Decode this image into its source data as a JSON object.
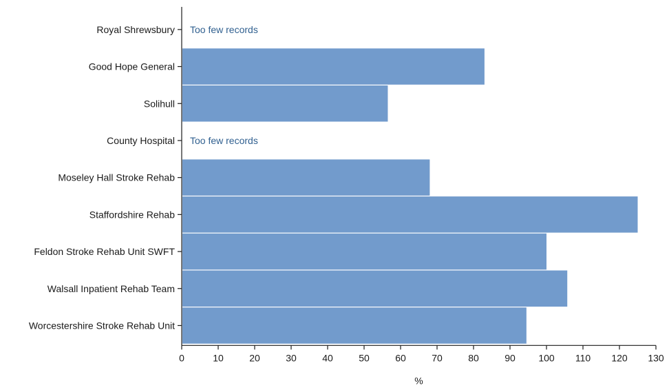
{
  "chart_data": {
    "type": "bar",
    "orientation": "horizontal",
    "categories": [
      "Royal Shrewsbury",
      "Good Hope General",
      "Solihull",
      "County Hospital",
      "Moseley Hall Stroke Rehab",
      "Staffordshire Rehab",
      "Feldon Stroke Rehab Unit SWFT",
      "Walsall Inpatient Rehab Team",
      "Worcestershire Stroke Rehab Unit"
    ],
    "values": [
      null,
      83,
      56.5,
      null,
      68,
      125,
      100,
      105.7,
      94.5
    ],
    "notes": [
      "Too few records",
      null,
      null,
      "Too few records",
      null,
      null,
      null,
      null,
      null
    ],
    "xlabel": "%",
    "ylabel": "",
    "xlim": [
      0,
      130
    ],
    "xticks": [
      0,
      10,
      20,
      30,
      40,
      50,
      60,
      70,
      80,
      90,
      100,
      110,
      120,
      130
    ],
    "grid": false,
    "bar_color": "#729bcc",
    "note_color": "#2f5f8f"
  }
}
